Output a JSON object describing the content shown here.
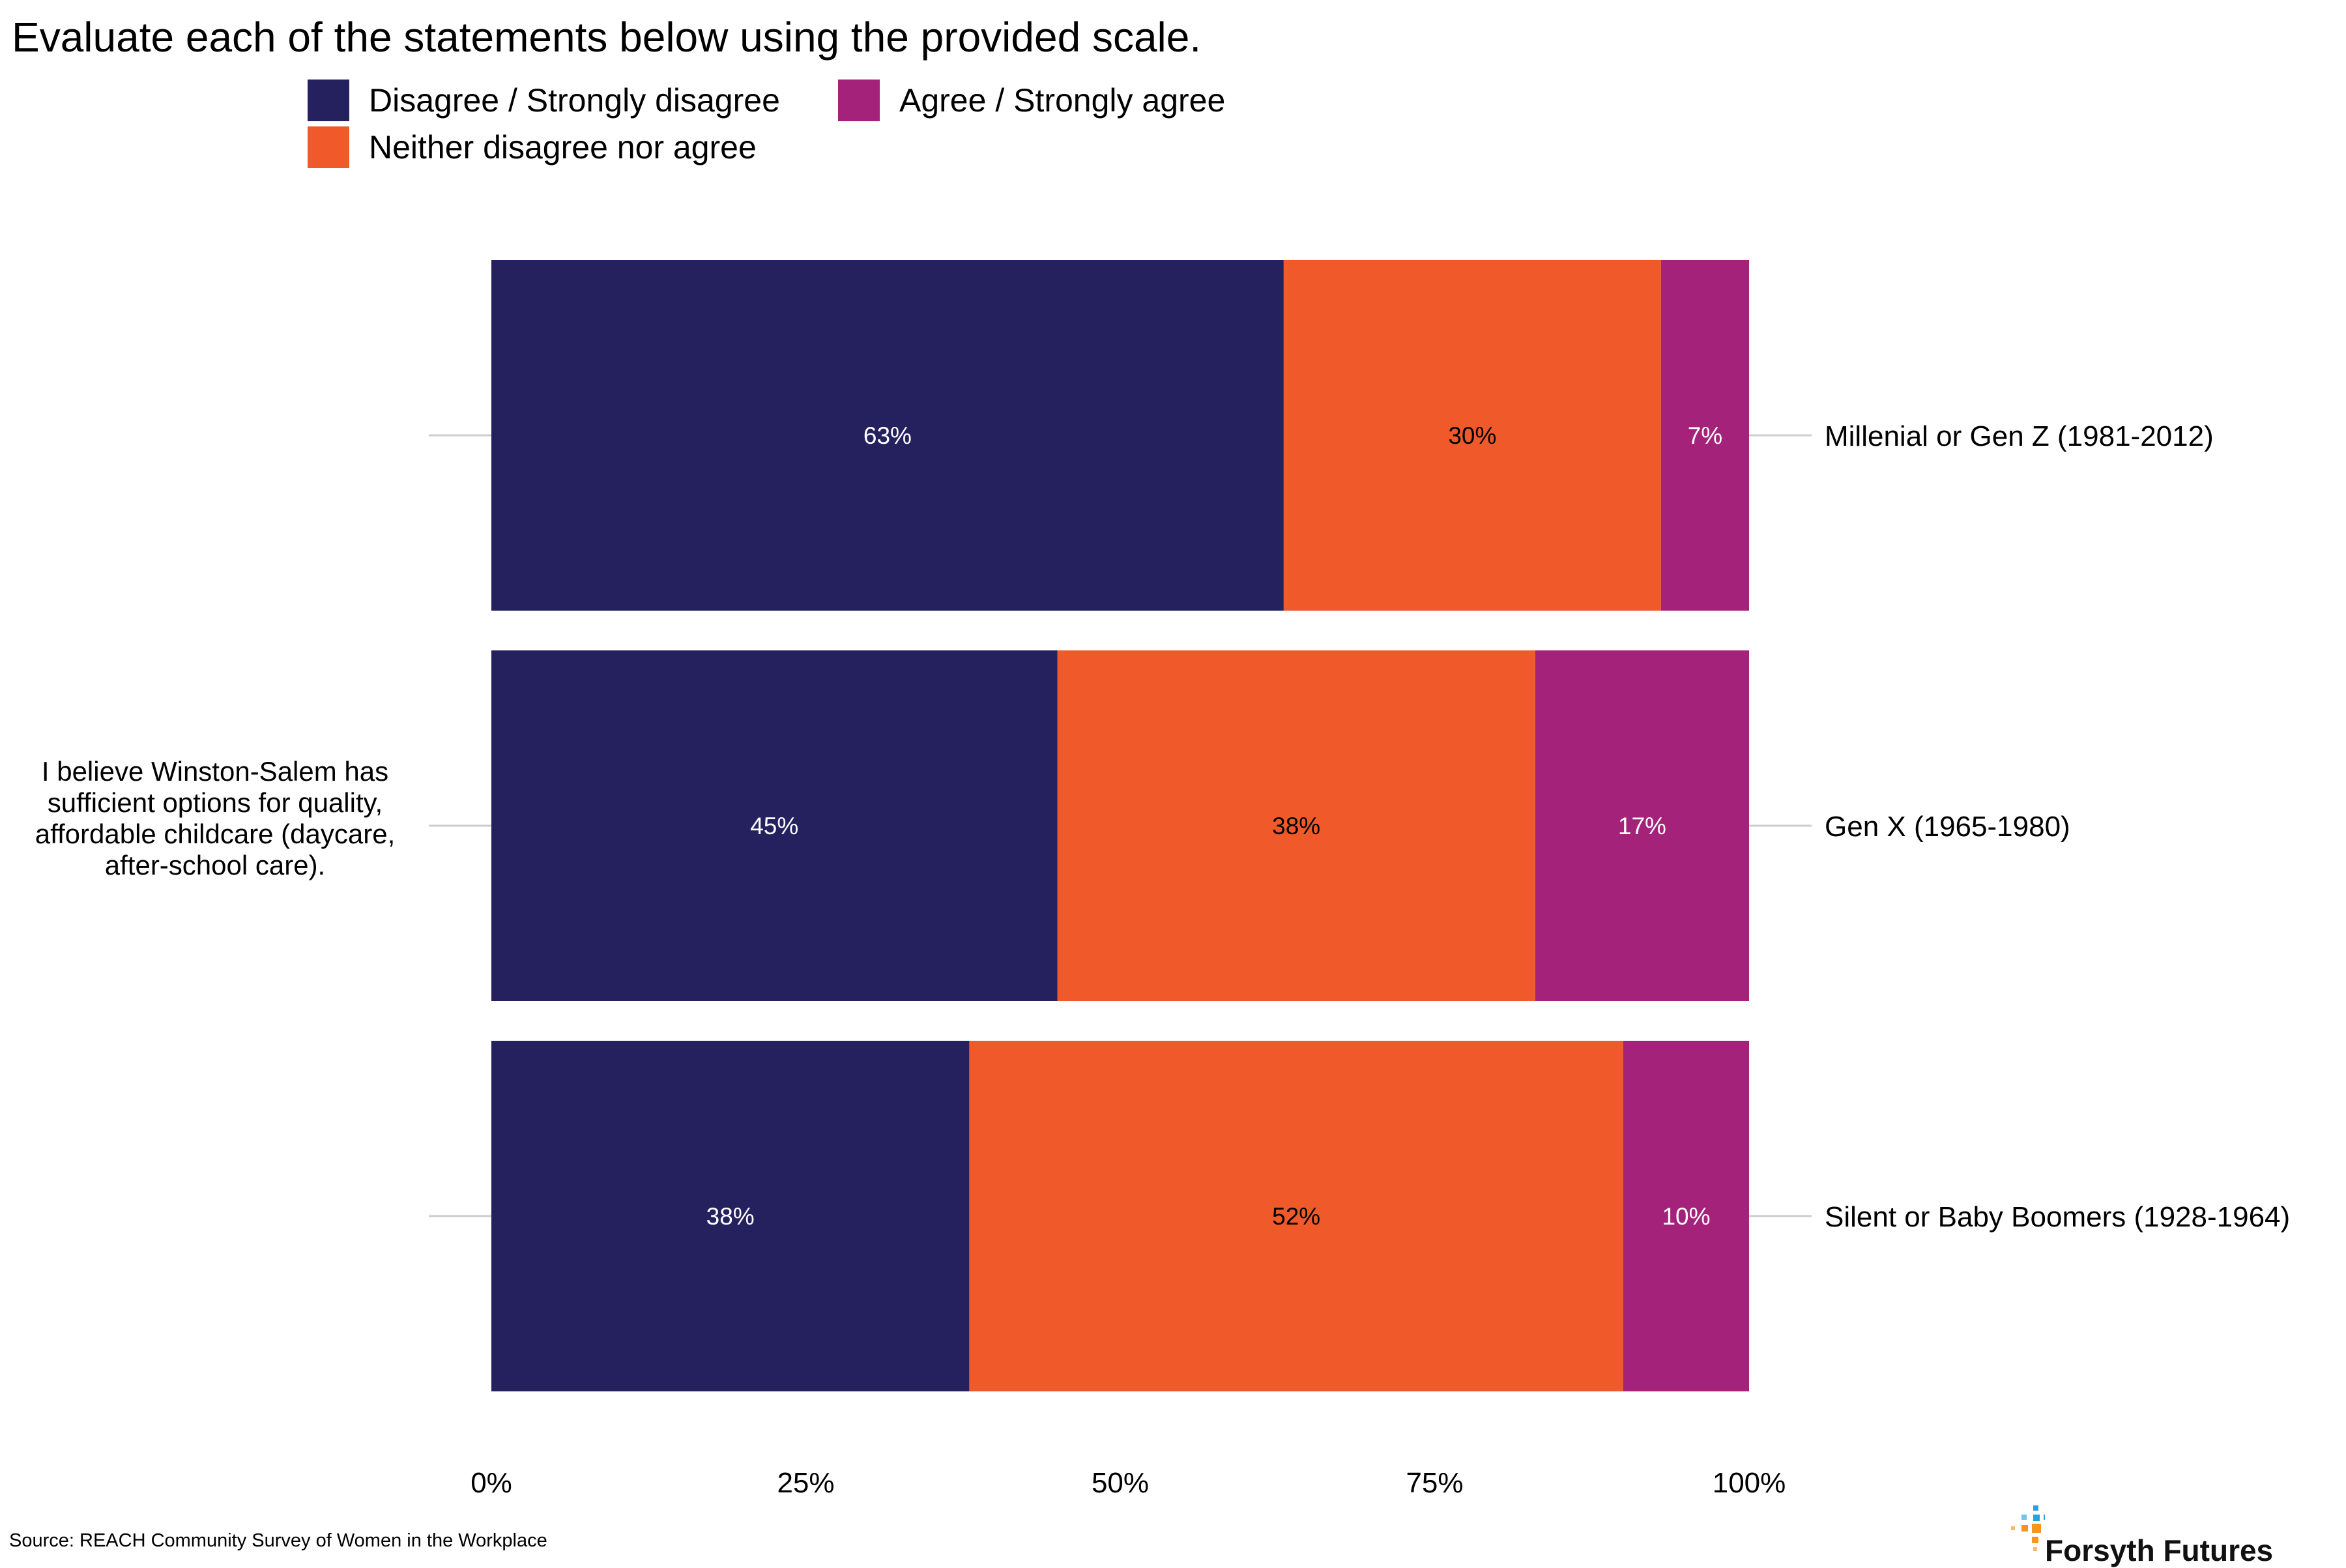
{
  "title": "Evaluate each of the statements below using the provided scale.",
  "legend": [
    {
      "label": "Disagree / Strongly disagree",
      "color": "#25215e"
    },
    {
      "label": "Agree / Strongly agree",
      "color": "#a4227a"
    },
    {
      "label": "Neither disagree nor agree",
      "color": "#f05a2b"
    }
  ],
  "question": "I believe Winston-Salem has sufficient options for quality, affordable childcare (daycare, after-school care).",
  "source": "Source: REACH Community Survey of Women in the Workplace",
  "brand": {
    "name": "Forsyth Futures",
    "icon": "forsyth-futures-logo-icon"
  },
  "chart_data": {
    "type": "bar",
    "orientation": "horizontal",
    "stacked": true,
    "categories": [
      "Millenial or Gen Z (1981-2012)",
      "Gen X (1965-1980)",
      "Silent or Baby Boomers (1928-1964)"
    ],
    "series": [
      {
        "name": "Disagree / Strongly disagree",
        "color": "#25215e",
        "values": [
          63,
          45,
          38
        ],
        "labels": [
          "63%",
          "45%",
          "38%"
        ],
        "label_color": "#ffffff"
      },
      {
        "name": "Neither disagree nor agree",
        "color": "#f05a2b",
        "values": [
          30,
          38,
          52
        ],
        "labels": [
          "30%",
          "38%",
          "52%"
        ],
        "label_color": "#000000"
      },
      {
        "name": "Agree / Strongly agree",
        "color": "#a4227a",
        "values": [
          7,
          17,
          10
        ],
        "labels": [
          "7%",
          "17%",
          "10%"
        ],
        "label_color": "#ffffff"
      }
    ],
    "xlim": [
      0,
      100
    ],
    "xticks": [
      "0%",
      "25%",
      "50%",
      "75%",
      "100%"
    ],
    "grid": false,
    "legend_position": "top-left"
  }
}
